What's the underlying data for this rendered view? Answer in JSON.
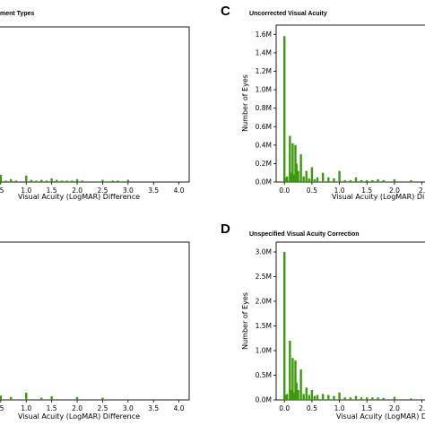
{
  "theme": {
    "bar_color": "#3a9a0a",
    "axis_color": "#000000",
    "background": "#ffffff"
  },
  "chart_data": [
    {
      "panel": "",
      "type": "bar",
      "title": "ment Types",
      "xlabel": "Visual Acuity (LogMAR) Difference",
      "ylabel": "",
      "xticks": [
        ".5",
        "1.0",
        "1.5",
        "2.0",
        "2.5",
        "3.0",
        "3.5",
        "4.0"
      ],
      "xtick_values": [
        0.5,
        1.0,
        1.5,
        2.0,
        2.5,
        3.0,
        3.5,
        4.0
      ],
      "yticks": [],
      "xlim": [
        0.45,
        4.2
      ],
      "x": [
        0.5,
        0.6,
        0.7,
        0.8,
        1.0,
        1.1,
        1.2,
        1.3,
        1.4,
        1.5,
        1.6,
        1.7,
        1.8,
        1.9,
        2.0,
        2.1,
        2.5,
        2.7,
        2.8,
        3.0
      ],
      "values": [
        1.0,
        0.2,
        0.4,
        0.2,
        0.9,
        0.3,
        0.2,
        0.3,
        0.2,
        0.5,
        0.3,
        0.2,
        0.2,
        0.2,
        0.4,
        0.2,
        0.3,
        0.2,
        0.2,
        0.3
      ]
    },
    {
      "panel": "C",
      "type": "bar",
      "title": "Uncorrected Visual Acuity",
      "xlabel": "Visual Acuity (LogMAR) Di",
      "ylabel": "Number of Eyes",
      "xticks": [
        "0.0",
        "0.5",
        "1.0",
        "1.5",
        "2.0",
        "2."
      ],
      "xtick_values": [
        0.0,
        0.5,
        1.0,
        1.5,
        2.0,
        2.5
      ],
      "yticks": [
        "0.0M",
        "0.2M",
        "0.4M",
        "0.6M",
        "0.8M",
        "1.0M",
        "1.2M",
        "1.4M",
        "1.6M"
      ],
      "ytick_values": [
        0,
        0.2,
        0.4,
        0.6,
        0.8,
        1.0,
        1.2,
        1.4,
        1.6
      ],
      "xlim": [
        -0.15,
        2.62
      ],
      "ylim": [
        0,
        1.7
      ],
      "unit": "M",
      "x": [
        0.0,
        0.02,
        0.05,
        0.1,
        0.12,
        0.15,
        0.18,
        0.2,
        0.22,
        0.25,
        0.3,
        0.35,
        0.4,
        0.45,
        0.5,
        0.55,
        0.6,
        0.7,
        0.8,
        0.9,
        1.0,
        1.1,
        1.2,
        1.3,
        1.4,
        1.5,
        1.6,
        1.7,
        1.8,
        2.0,
        2.3
      ],
      "values": [
        1.58,
        0.05,
        0.06,
        0.5,
        0.1,
        0.42,
        0.08,
        0.4,
        0.2,
        0.12,
        0.3,
        0.06,
        0.12,
        0.04,
        0.16,
        0.03,
        0.05,
        0.1,
        0.05,
        0.04,
        0.12,
        0.02,
        0.02,
        0.05,
        0.02,
        0.02,
        0.02,
        0.03,
        0.02,
        0.03,
        0.02
      ]
    },
    {
      "panel": "",
      "type": "bar",
      "title": "",
      "xlabel": "Visual Acuity (LogMAR) Difference",
      "ylabel": "",
      "xticks": [
        ".5",
        "1.0",
        "1.5",
        "2.0",
        "2.5",
        "3.0",
        "3.5",
        "4.0"
      ],
      "xtick_values": [
        0.5,
        1.0,
        1.5,
        2.0,
        2.5,
        3.0,
        3.5,
        4.0
      ],
      "yticks": [],
      "xlim": [
        0.45,
        4.2
      ],
      "x": [
        0.5,
        0.7,
        1.0,
        1.3,
        1.5,
        2.0,
        2.5
      ],
      "values": [
        0.6,
        0.4,
        1.0,
        0.3,
        0.5,
        0.4,
        0.3
      ]
    },
    {
      "panel": "D",
      "type": "bar",
      "title": "Unspecified Visual Acuity Correction",
      "xlabel": "Visual Acuity (LogMAR) Di",
      "ylabel": "Number of Eyes",
      "xticks": [
        "0.0",
        "0.5",
        "1.0",
        "1.5",
        "2.0",
        "2."
      ],
      "xtick_values": [
        0.0,
        0.5,
        1.0,
        1.5,
        2.0,
        2.5
      ],
      "yticks": [
        "0.0M",
        "0.5M",
        "1.0M",
        "1.5M",
        "2.0M",
        "2.5M",
        "3.0M"
      ],
      "ytick_values": [
        0,
        0.5,
        1.0,
        1.5,
        2.0,
        2.5,
        3.0
      ],
      "xlim": [
        -0.15,
        2.62
      ],
      "ylim": [
        0,
        3.2
      ],
      "unit": "M",
      "x": [
        0.0,
        0.02,
        0.05,
        0.1,
        0.12,
        0.15,
        0.18,
        0.2,
        0.22,
        0.25,
        0.3,
        0.35,
        0.4,
        0.45,
        0.5,
        0.55,
        0.6,
        0.7,
        0.8,
        0.9,
        1.0,
        1.1,
        1.2,
        1.3,
        1.4,
        1.5,
        1.6,
        1.7,
        1.8,
        2.0,
        2.3
      ],
      "values": [
        3.0,
        0.1,
        0.12,
        1.2,
        0.2,
        0.85,
        0.15,
        0.8,
        0.35,
        0.2,
        0.62,
        0.12,
        0.25,
        0.1,
        0.2,
        0.08,
        0.1,
        0.12,
        0.1,
        0.08,
        0.15,
        0.05,
        0.05,
        0.08,
        0.05,
        0.05,
        0.05,
        0.05,
        0.04,
        0.06,
        0.03
      ]
    }
  ]
}
